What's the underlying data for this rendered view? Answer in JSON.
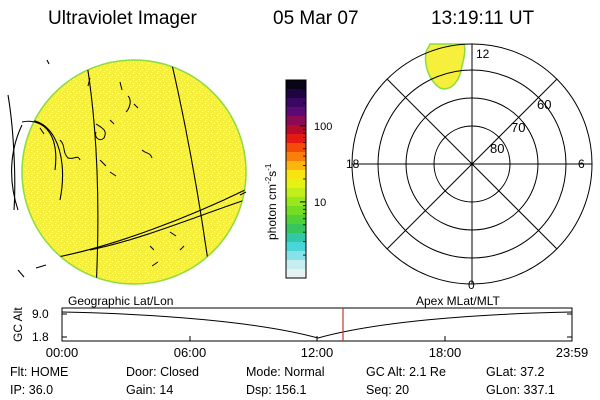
{
  "header": {
    "title": "Ultraviolet Imager",
    "date": "05 Mar 07",
    "time": "13:19:11 UT"
  },
  "colorbar": {
    "label": "photon cm",
    "exp1": "-2",
    "mid": "s",
    "exp2": "-1",
    "ticks": [
      {
        "label": "100",
        "value": 100
      },
      {
        "label": "10",
        "value": 10
      }
    ],
    "colors": [
      "#0b0418",
      "#1d0540",
      "#3a0763",
      "#5a0a72",
      "#8a0a55",
      "#b80a2a",
      "#e41a12",
      "#f44a0a",
      "#f97e0a",
      "#fbb60d",
      "#f8e40f",
      "#e6f214",
      "#c2ee1a",
      "#98e81e",
      "#74dd22",
      "#4fd13a",
      "#37c65e",
      "#30c8a8",
      "#48d6d8",
      "#86e2e8",
      "#c6eef0",
      "#e6f2f2"
    ]
  },
  "left_panel": {
    "label": "Geographic Lat/Lon",
    "fill_color": "#f6ef3c",
    "edge_color": "#8bdc3c"
  },
  "right_panel": {
    "label": "Apex MLat/MLT",
    "labels": {
      "top": "12",
      "left": "18",
      "right": "6",
      "bottom": "0"
    },
    "rings": [
      {
        "label": "60",
        "value": 60
      },
      {
        "label": "70",
        "value": 70
      },
      {
        "label": "80",
        "value": 80
      }
    ]
  },
  "altitude_plot": {
    "ylabel": "GC Alt",
    "y_ticks": [
      "9.0",
      "1.8"
    ],
    "x_ticks": [
      "00:00",
      "06:00",
      "12:00",
      "18:00",
      "23:59"
    ],
    "current_time_color": "#c0392b"
  },
  "info": [
    [
      {
        "key": "Flt:",
        "value": "HOME"
      },
      {
        "key": "Door:",
        "value": "Closed"
      },
      {
        "key": "Mode:",
        "value": "Normal"
      },
      {
        "key": "GC Alt:",
        "value": "2.1 Re"
      },
      {
        "key": "GLat:",
        "value": "37.2"
      }
    ],
    [
      {
        "key": "IP:",
        "value": "36.0"
      },
      {
        "key": "Gain:",
        "value": "14"
      },
      {
        "key": "Dsp:",
        "value": "156.1"
      },
      {
        "key": "Seq:",
        "value": "20"
      },
      {
        "key": "GLon:",
        "value": "337.1"
      }
    ]
  ]
}
